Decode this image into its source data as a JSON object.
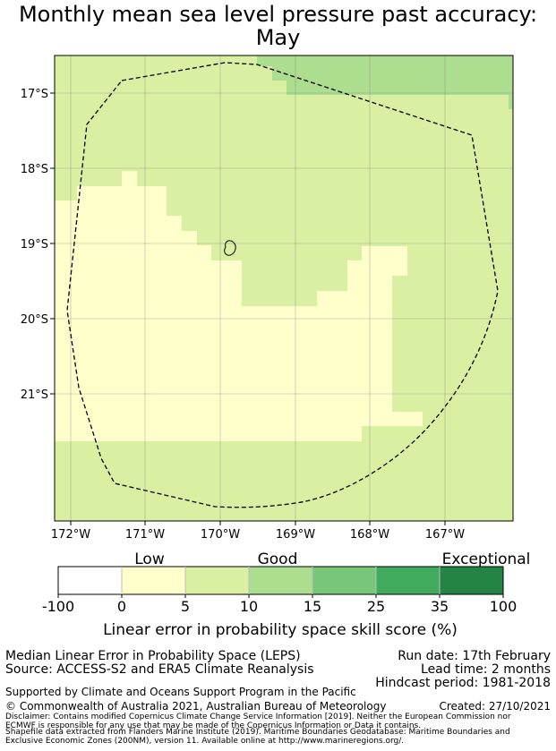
{
  "title": {
    "line1": "Monthly mean sea level pressure past accuracy:",
    "line2": "May"
  },
  "map": {
    "lat_labels": [
      "17°S",
      "18°S",
      "19°S",
      "20°S",
      "21°S"
    ],
    "lon_labels": [
      "172°W",
      "171°W",
      "170°W",
      "169°W",
      "168°W",
      "167°W"
    ],
    "region": "Niue EEZ (dashed boundary)"
  },
  "legend": {
    "category_labels": [
      "Low",
      "Good",
      "Exceptional"
    ],
    "tick_labels": [
      "-100",
      "0",
      "5",
      "10",
      "15",
      "25",
      "35",
      "100"
    ],
    "colors": [
      "#ffffff",
      "#ffffcc",
      "#d9f0a3",
      "#addd8e",
      "#78c679",
      "#41ab5d",
      "#238443"
    ],
    "axis_label": "Linear error in probability space skill score (%)"
  },
  "info": {
    "method": "Median Linear Error in Probability Space (LEPS)",
    "source": "Source: ACCESS-S2 and ERA5 Climate Reanalysis",
    "run_date": "Run date: 17th February",
    "lead_time": "Lead time: 2 months",
    "hindcast": "Hindcast period: 1981-2018",
    "support": "Supported by Climate and Oceans Support Program in the Pacific",
    "copyright": "© Commonwealth of Australia 2021, Australian Bureau of Meteorology",
    "created": "Created: 27/10/2021",
    "disclaimer1": "Disclaimer: Contains modified Copernicus Climate Change Service Information [2019]. Neither the European Commission nor",
    "disclaimer2": "ECMWF is responsible for any use that may be made of the Copernicus Information or Data it contains.",
    "shapefile1": "Shapefile data extracted from Flanders Marine Institute (2019). Maritime Boundaries Geodatabase: Maritime Boundaries and",
    "shapefile2": "Exclusive Economic Zones (200NM), version 11. Available online at http://www.marineregions.org/."
  }
}
